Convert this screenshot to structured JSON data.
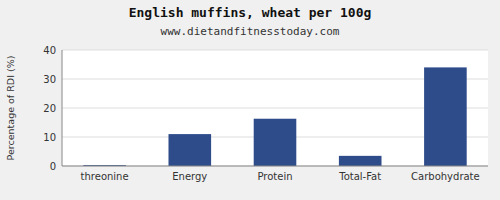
{
  "chart_data": {
    "type": "bar",
    "title": "English muffins, wheat per 100g",
    "subtitle": "www.dietandfitnesstoday.com",
    "ylabel": "Percentage of RDI (%)",
    "categories": [
      "threonine",
      "Energy",
      "Protein",
      "Total-Fat",
      "Carbohydrate"
    ],
    "values": [
      0.3,
      11.0,
      16.3,
      3.5,
      34.0
    ],
    "color": "#2e4b8a",
    "ylim": [
      0,
      40
    ],
    "yticks": [
      0,
      10,
      20,
      30,
      40
    ],
    "grid": true
  }
}
